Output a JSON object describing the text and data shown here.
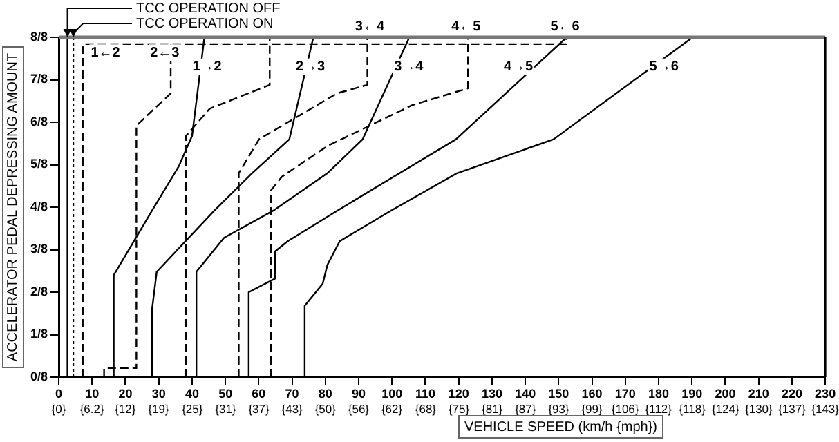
{
  "chart_data": {
    "type": "line",
    "xlabel": "VEHICLE SPEED (km/h {mph})",
    "ylabel": "ACCELERATOR PEDAL DEPRESSING AMOUNT",
    "xlim": [
      0,
      230
    ],
    "ylim": [
      0,
      1
    ],
    "xticks": [
      0,
      10,
      20,
      30,
      40,
      50,
      60,
      70,
      80,
      90,
      100,
      110,
      120,
      130,
      140,
      150,
      160,
      170,
      180,
      190,
      200,
      210,
      220,
      230
    ],
    "x2lim": [
      0,
      142.9
    ],
    "x2ticks": [
      {
        "value": 0,
        "label": "{0}"
      },
      {
        "value": 6.2,
        "label": "{6.2}"
      },
      {
        "value": 12.4,
        "label": "{12}"
      },
      {
        "value": 18.6,
        "label": "{19}"
      },
      {
        "value": 24.9,
        "label": "{25}"
      },
      {
        "value": 31.1,
        "label": "{31}"
      },
      {
        "value": 37.3,
        "label": "{37}"
      },
      {
        "value": 43.5,
        "label": "{43}"
      },
      {
        "value": 49.7,
        "label": "{50}"
      },
      {
        "value": 55.9,
        "label": "{56}"
      },
      {
        "value": 62.1,
        "label": "{62}"
      },
      {
        "value": 68.4,
        "label": "{68}"
      },
      {
        "value": 74.6,
        "label": "{75}"
      },
      {
        "value": 80.8,
        "label": "{81}"
      },
      {
        "value": 87.0,
        "label": "{87}"
      },
      {
        "value": 93.2,
        "label": "{93}"
      },
      {
        "value": 99.4,
        "label": "{99}"
      },
      {
        "value": 105.6,
        "label": "{106}"
      },
      {
        "value": 111.8,
        "label": "{112}"
      },
      {
        "value": 118.1,
        "label": "{118}"
      },
      {
        "value": 124.3,
        "label": "{124}"
      },
      {
        "value": 130.5,
        "label": "{130}"
      },
      {
        "value": 136.7,
        "label": "{137}"
      },
      {
        "value": 142.9,
        "label": "{143}"
      }
    ],
    "yticks": [
      {
        "value": 0,
        "label": "0/8"
      },
      {
        "value": 0.125,
        "label": "1/8"
      },
      {
        "value": 0.25,
        "label": "2/8"
      },
      {
        "value": 0.375,
        "label": "3/8"
      },
      {
        "value": 0.5,
        "label": "4/8"
      },
      {
        "value": 0.625,
        "label": "5/8"
      },
      {
        "value": 0.75,
        "label": "6/8"
      },
      {
        "value": 0.875,
        "label": "7/8"
      },
      {
        "value": 1,
        "label": "8/8"
      }
    ],
    "grid": false,
    "legend": false,
    "marker": "none",
    "series": [
      {
        "color": "#000000",
        "line_style": "solid",
        "x": [
          2.6,
          2.6
        ],
        "values": [
          0,
          1
        ]
      },
      {
        "color": "#000000",
        "line_style": "dotted",
        "x": [
          4.4,
          4.4
        ],
        "values": [
          0,
          1
        ]
      },
      {
        "color": "#000000",
        "line_style": "dashed",
        "x": [
          7.2,
          7.2,
          152.3,
          152.3
        ],
        "values": [
          0,
          0.98,
          0.98,
          1
        ]
      },
      {
        "color": "#000000",
        "line_style": "dashed",
        "x": [
          13.6,
          13.6,
          23.3,
          23.3,
          33.6,
          33.6
        ],
        "values": [
          0,
          0.026,
          0.026,
          0.74,
          0.835,
          0.98
        ]
      },
      {
        "color": "#000000",
        "line_style": "dashed",
        "x": [
          38.2,
          38.2,
          45.3,
          63.3,
          63.3
        ],
        "values": [
          0,
          0.71,
          0.79,
          0.86,
          1
        ]
      },
      {
        "color": "#000000",
        "line_style": "dashed",
        "x": [
          54,
          54,
          60.1,
          83.5,
          92.6,
          92.6
        ],
        "values": [
          0,
          0.6,
          0.7,
          0.835,
          0.86,
          1
        ]
      },
      {
        "color": "#000000",
        "line_style": "dashed",
        "x": [
          63.7,
          63.7,
          67,
          80.6,
          106,
          122.8,
          122.8
        ],
        "values": [
          0,
          0.55,
          0.59,
          0.68,
          0.8,
          0.85,
          1
        ]
      },
      {
        "color": "#000000",
        "line_style": "solid",
        "x": [
          16.5,
          16.5,
          28,
          36,
          40,
          43.7
        ],
        "values": [
          0,
          0.3,
          0.49,
          0.62,
          0.71,
          1
        ]
      },
      {
        "color": "#000000",
        "line_style": "solid",
        "x": [
          28,
          28,
          29.4,
          46.7,
          58,
          69.2,
          76.4
        ],
        "values": [
          0,
          0.2,
          0.31,
          0.49,
          0.6,
          0.7,
          1
        ]
      },
      {
        "color": "#000000",
        "line_style": "solid",
        "x": [
          41.3,
          41.3,
          49.6,
          64.4,
          80.6,
          91.2,
          105.2
        ],
        "values": [
          0,
          0.31,
          0.41,
          0.49,
          0.6,
          0.7,
          1
        ]
      },
      {
        "color": "#000000",
        "line_style": "solid",
        "x": [
          57,
          57,
          64.9,
          64.9,
          68.7,
          83.6,
          119.2,
          152.4
        ],
        "values": [
          0,
          0.25,
          0.29,
          0.37,
          0.4,
          0.49,
          0.7,
          1
        ]
      },
      {
        "color": "#000000",
        "line_style": "solid",
        "x": [
          73.8,
          73.8,
          79.2,
          80.6,
          84.3,
          99.7,
          119.5,
          148.5,
          190.2
        ],
        "values": [
          0,
          0.21,
          0.275,
          0.33,
          0.4,
          0.49,
          0.6,
          0.7,
          1
        ]
      }
    ],
    "annotations": [
      "TCC OPERATION OFF",
      "TCC OPERATION ON",
      {
        "text": "1←2",
        "x": 14,
        "y": 0.955
      },
      {
        "text": "2←3",
        "x": 31.8,
        "y": 0.955
      },
      {
        "text": "1→2",
        "x": 44.5,
        "y": 0.913
      },
      {
        "text": "2→3",
        "x": 75.5,
        "y": 0.913
      },
      {
        "text": "3→4",
        "x": 105,
        "y": 0.913
      },
      {
        "text": "4→5",
        "x": 137.9,
        "y": 0.913
      },
      {
        "text": "5→6",
        "x": 181.6,
        "y": 0.913
      },
      {
        "text": "3←4",
        "x": 93.3,
        "y": 1
      },
      {
        "text": "4←5",
        "x": 122.2,
        "y": 1
      },
      {
        "text": "5←6",
        "x": 151.9,
        "y": 1
      }
    ]
  }
}
